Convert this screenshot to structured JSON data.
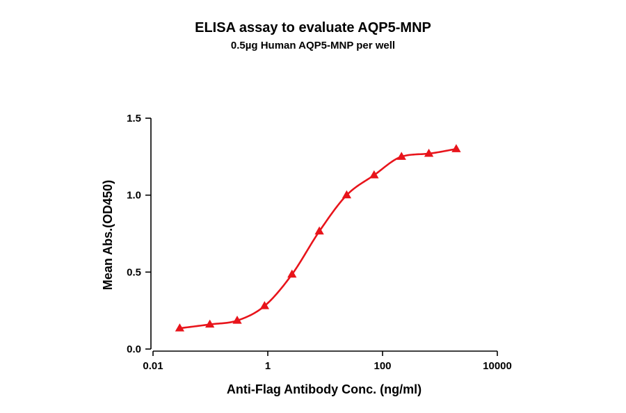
{
  "chart_data": {
    "type": "scatter",
    "title": "ELISA assay to evaluate AQP5-MNP",
    "subtitle": "0.5µg Human AQP5-MNP per well",
    "xlabel": "Anti-Flag Antibody Conc. (ng/ml)",
    "ylabel": "Mean Abs.(OD450)",
    "x_scale": "log",
    "xlim": [
      0.01,
      10000
    ],
    "ylim": [
      0,
      1.5
    ],
    "x_ticks": [
      0.01,
      1,
      100,
      10000
    ],
    "x_tick_labels": [
      "0.01",
      "1",
      "100",
      "10000"
    ],
    "y_ticks": [
      0,
      0.5,
      1.0,
      1.5
    ],
    "y_tick_labels": [
      "0.0",
      "0.5",
      "1.0",
      "1.5"
    ],
    "grid": false,
    "legend": "none",
    "series": [
      {
        "marker": "triangle",
        "color": "#e8141b",
        "fit": "sigmoidal",
        "x": [
          0.0292,
          0.0977,
          0.293,
          0.879,
          2.64,
          7.91,
          23.7,
          71.2,
          214,
          641,
          1923
        ],
        "y": [
          0.135,
          0.16,
          0.185,
          0.28,
          0.485,
          0.765,
          1.0,
          1.13,
          1.25,
          1.27,
          1.3
        ]
      }
    ]
  }
}
